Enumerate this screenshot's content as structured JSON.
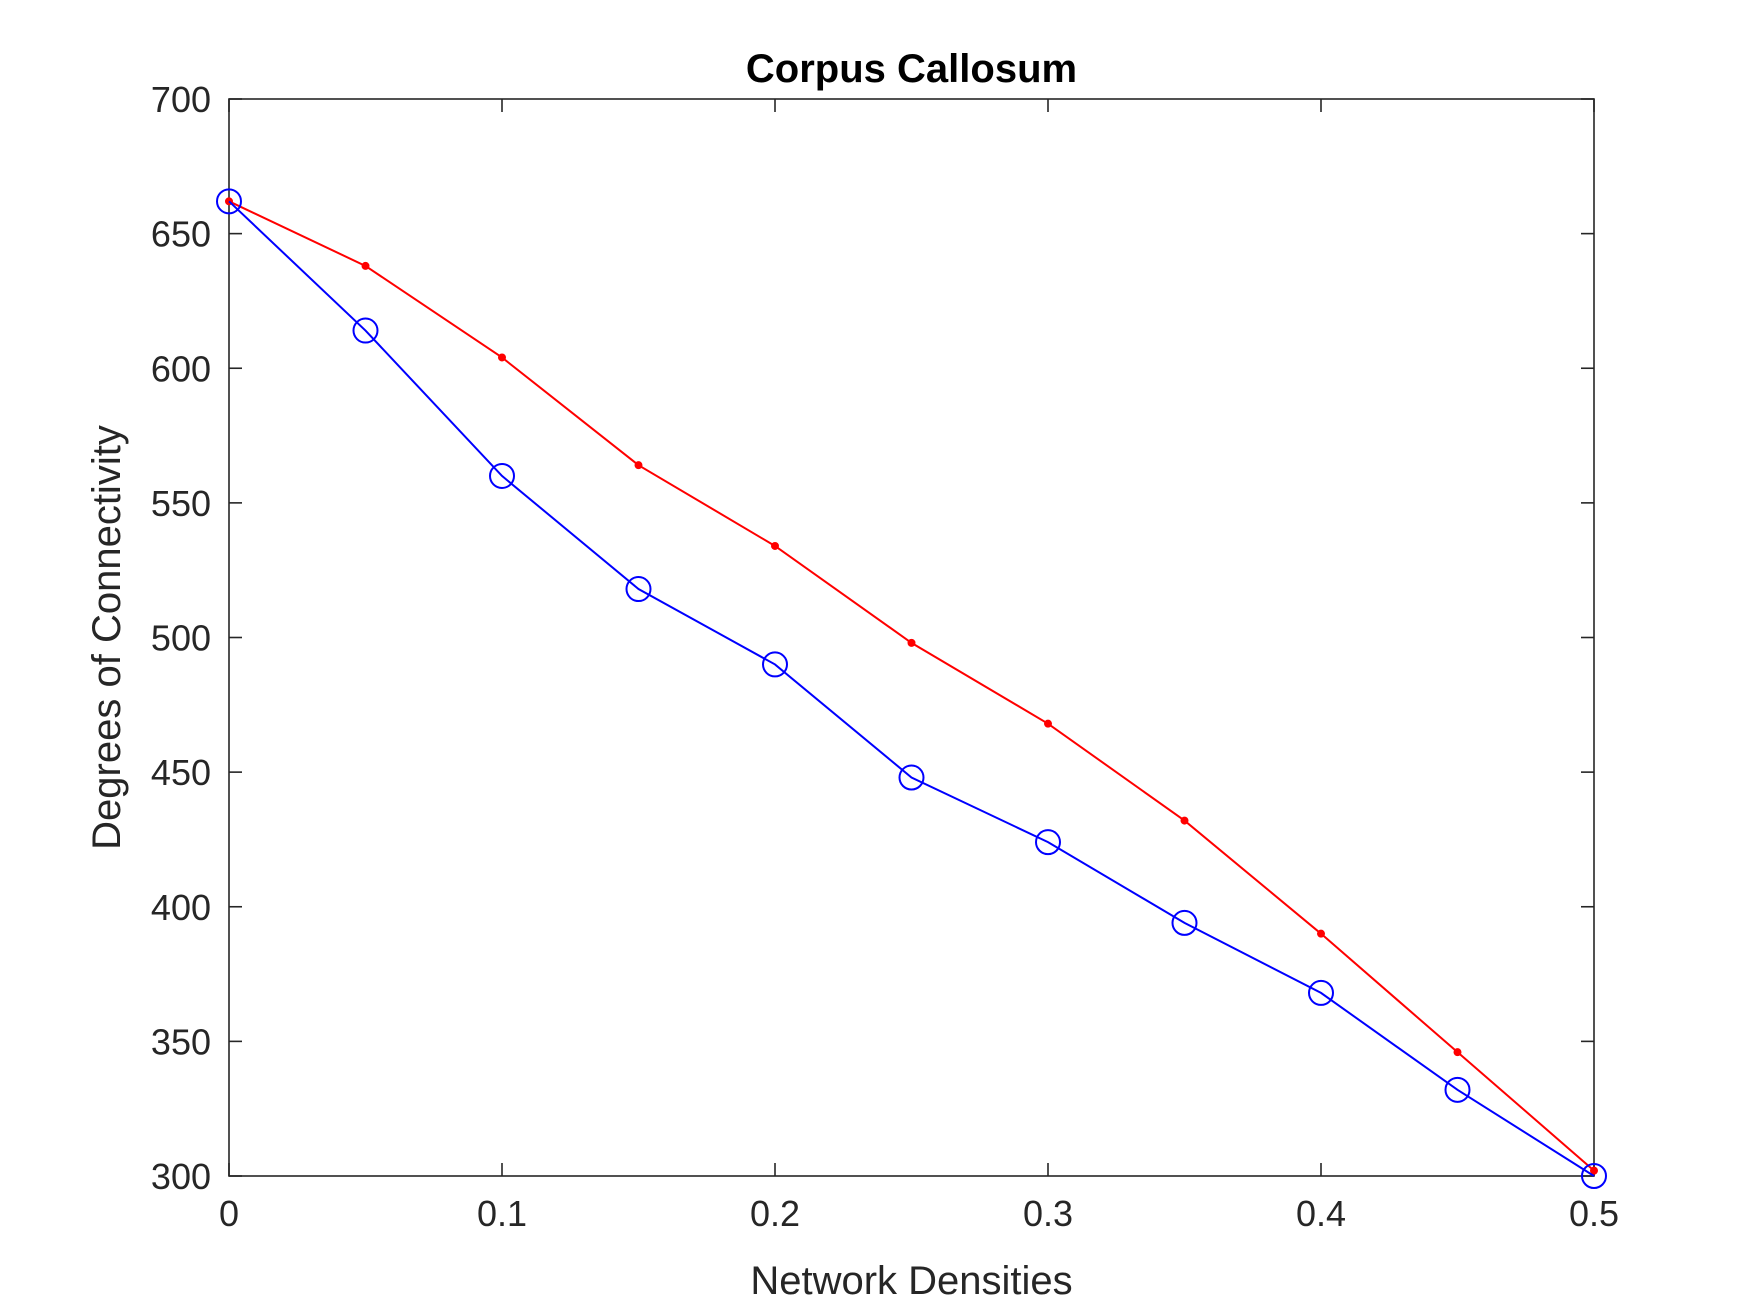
{
  "chart_data": {
    "type": "line",
    "title": "Corpus Callosum",
    "xlabel": "Network Densities",
    "ylabel": "Degrees of Connectivity",
    "xlim": [
      0,
      0.5
    ],
    "ylim": [
      300,
      700
    ],
    "xticks": [
      0,
      0.1,
      0.2,
      0.3,
      0.4,
      0.5
    ],
    "xtick_labels": [
      "0",
      "0.1",
      "0.2",
      "0.3",
      "0.4",
      "0.5"
    ],
    "yticks": [
      300,
      350,
      400,
      450,
      500,
      550,
      600,
      650,
      700
    ],
    "ytick_labels": [
      "300",
      "350",
      "400",
      "450",
      "500",
      "550",
      "600",
      "650",
      "700"
    ],
    "grid": false,
    "x": [
      0,
      0.05,
      0.1,
      0.15,
      0.2,
      0.25,
      0.3,
      0.35,
      0.4,
      0.45,
      0.5
    ],
    "series": [
      {
        "color": "#ff0000",
        "marker": "dot",
        "values": [
          662,
          638,
          604,
          564,
          534,
          498,
          468,
          432,
          390,
          346,
          302
        ]
      },
      {
        "color": "#0000ff",
        "marker": "circle",
        "values": [
          662,
          614,
          560,
          518,
          490,
          448,
          424,
          394,
          368,
          332,
          300
        ]
      }
    ]
  }
}
